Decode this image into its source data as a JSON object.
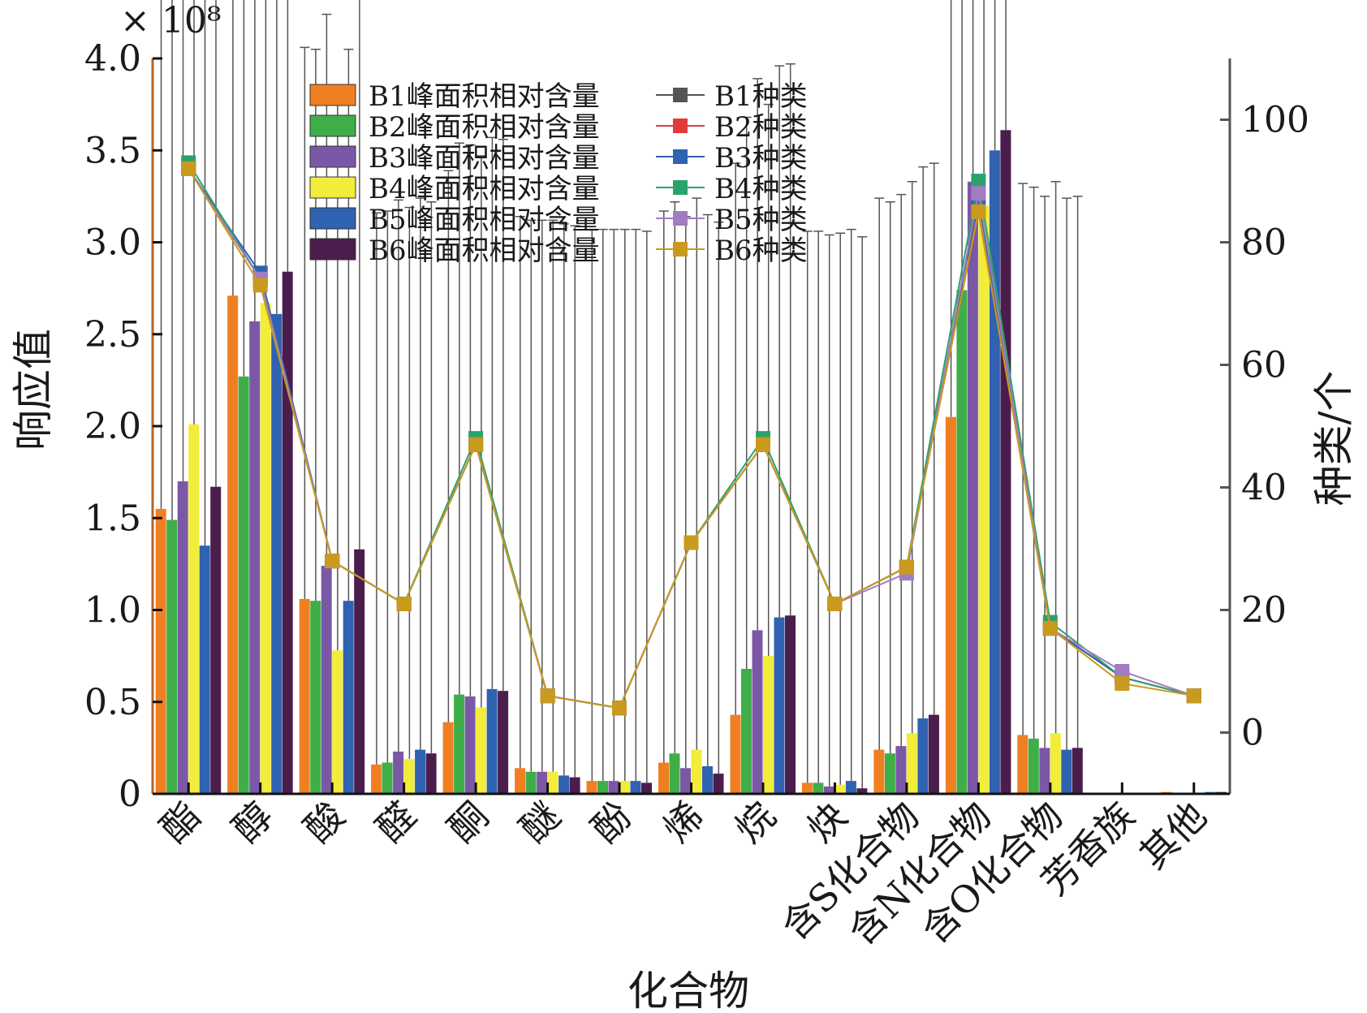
{
  "chart_data": {
    "type": "bar",
    "exponent_label": "× 10⁸",
    "xlabel": "化合物",
    "ylabel": "响应值",
    "y2label": "种类/个",
    "ylim": [
      0,
      4.0
    ],
    "y2lim": [
      -10,
      110
    ],
    "yticks": [
      "0",
      "0.5",
      "1.0",
      "1.5",
      "2.0",
      "2.5",
      "3.0",
      "3.5",
      "4.0"
    ],
    "y2ticks": [
      "0",
      "20",
      "40",
      "60",
      "80",
      "100"
    ],
    "categories": [
      "酯",
      "醇",
      "酸",
      "醛",
      "酮",
      "醚",
      "酚",
      "烯",
      "烷",
      "炔",
      "含S化合物",
      "含N化合物",
      "含O化合物",
      "芳香族",
      "其他"
    ],
    "bar_series": [
      {
        "name": "B1峰面积相对含量",
        "color": "#f07f22",
        "values": [
          1.55,
          2.71,
          1.06,
          0.16,
          0.39,
          0.14,
          0.07,
          0.17,
          0.43,
          0.06,
          0.24,
          2.05,
          0.32,
          0.005,
          0.01
        ]
      },
      {
        "name": "B2峰面积相对含量",
        "color": "#3fae49",
        "values": [
          1.49,
          2.27,
          1.05,
          0.17,
          0.54,
          0.12,
          0.07,
          0.22,
          0.68,
          0.06,
          0.22,
          2.74,
          0.3,
          0.005,
          0.005
        ]
      },
      {
        "name": "B3峰面积相对含量",
        "color": "#7b58a6",
        "values": [
          1.7,
          2.57,
          1.24,
          0.23,
          0.53,
          0.12,
          0.07,
          0.14,
          0.89,
          0.04,
          0.26,
          3.33,
          0.25,
          0.005,
          0.005
        ]
      },
      {
        "name": "B4峰面积相对含量",
        "color": "#f2ec3a",
        "values": [
          2.01,
          2.67,
          0.78,
          0.19,
          0.47,
          0.12,
          0.07,
          0.24,
          0.75,
          0.05,
          0.33,
          3.2,
          0.33,
          0.005,
          0.005
        ]
      },
      {
        "name": "B5峰面积相对含量",
        "color": "#2f62b0",
        "values": [
          1.35,
          2.61,
          1.05,
          0.24,
          0.57,
          0.1,
          0.07,
          0.15,
          0.96,
          0.07,
          0.41,
          3.5,
          0.24,
          0.005,
          0.01
        ]
      },
      {
        "name": "B6峰面积相对含量",
        "color": "#4b1d4c",
        "values": [
          1.67,
          2.84,
          1.33,
          0.22,
          0.56,
          0.09,
          0.06,
          0.11,
          0.97,
          0.03,
          0.43,
          3.61,
          0.25,
          0.005,
          0.01
        ]
      }
    ],
    "line_series": [
      {
        "name": "B1种类",
        "color": "#555555",
        "values": [
          92,
          74,
          28,
          21,
          47,
          6,
          4,
          31,
          47,
          21,
          27,
          85,
          17,
          9,
          6
        ]
      },
      {
        "name": "B2种类",
        "color": "#e23a3a",
        "values": [
          92,
          74,
          28,
          21,
          47,
          6,
          4,
          31,
          47,
          21,
          27,
          85,
          17,
          9,
          6
        ]
      },
      {
        "name": "B3种类",
        "color": "#2f62b0",
        "values": [
          92,
          75,
          28,
          21,
          47,
          6,
          4,
          31,
          47,
          21,
          27,
          87,
          17,
          9,
          6
        ]
      },
      {
        "name": "B4种类",
        "color": "#2aa36b",
        "values": [
          93,
          74,
          28,
          21,
          48,
          6,
          4,
          31,
          48,
          21,
          27,
          90,
          18,
          9,
          6
        ]
      },
      {
        "name": "B5种类",
        "color": "#a07dc0",
        "values": [
          92,
          74,
          28,
          21,
          47,
          6,
          4,
          31,
          47,
          21,
          26,
          88,
          17,
          10,
          6
        ]
      },
      {
        "name": "B6种类",
        "color": "#c99a1e",
        "values": [
          92,
          73,
          28,
          21,
          47,
          6,
          4,
          31,
          47,
          21,
          27,
          85,
          17,
          8,
          6
        ]
      }
    ],
    "legend_position": "top-center",
    "grid": false
  }
}
